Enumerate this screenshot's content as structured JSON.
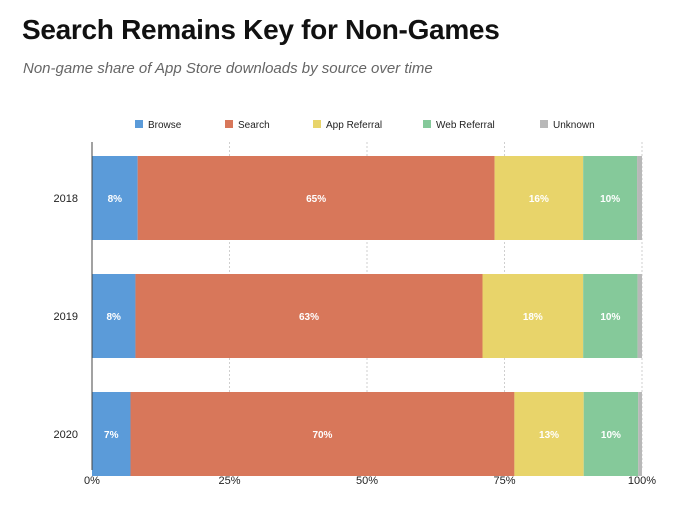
{
  "title": "Search Remains Key for Non-Games",
  "subtitle": "Non-game share of App Store downloads by source over time",
  "chart_data": {
    "type": "bar",
    "orientation": "horizontal",
    "stacked": true,
    "categories": [
      "2018",
      "2019",
      "2020"
    ],
    "series": [
      {
        "name": "Browse",
        "color": "#5b9bd9",
        "values": [
          8.3,
          7.9,
          7.0
        ],
        "labels": [
          "8%",
          "8%",
          "7%"
        ]
      },
      {
        "name": "Search",
        "color": "#d8775a",
        "values": [
          64.9,
          63.1,
          69.8
        ],
        "labels": [
          "65%",
          "63%",
          "70%"
        ]
      },
      {
        "name": "App Referral",
        "color": "#e8d46a",
        "values": [
          16.1,
          18.3,
          12.6
        ],
        "labels": [
          "16%",
          "18%",
          "13%"
        ]
      },
      {
        "name": "Web Referral",
        "color": "#85c99a",
        "values": [
          9.8,
          9.9,
          9.9
        ],
        "labels": [
          "10%",
          "10%",
          "10%"
        ]
      },
      {
        "name": "Unknown",
        "color": "#b8b8b8",
        "values": [
          0.9,
          0.8,
          0.7
        ],
        "labels": [
          "",
          "",
          ""
        ]
      }
    ],
    "xlim": [
      0,
      100
    ],
    "xticks": [
      0,
      25,
      50,
      75,
      100
    ],
    "xtick_labels": [
      "0%",
      "25%",
      "50%",
      "75%",
      "100%"
    ],
    "grid": true,
    "legend": "top"
  }
}
